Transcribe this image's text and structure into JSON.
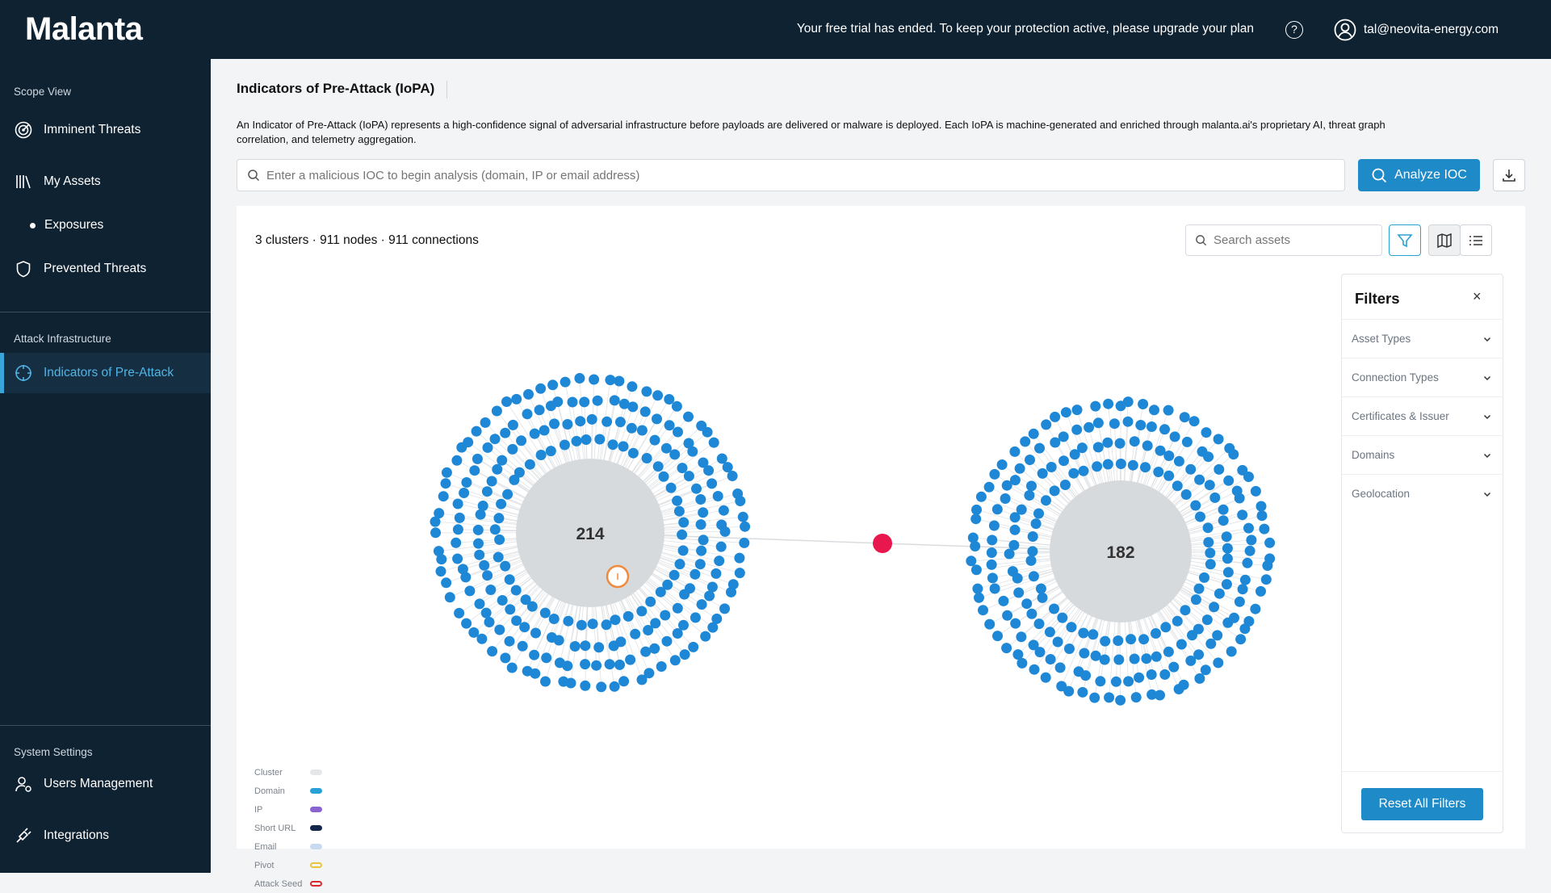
{
  "brand": {
    "name": "Malanta"
  },
  "topbar": {
    "trial_message": "Your free trial has ended. To keep your protection active, please upgrade your plan",
    "help_symbol": "?",
    "user_email": "tal@neovita-energy.com"
  },
  "sidebar": {
    "sections": [
      {
        "label": "Scope View"
      },
      {
        "label": "Attack Infrastructure"
      },
      {
        "label": "System Settings"
      }
    ],
    "items": [
      {
        "label": "Imminent Threats",
        "icon": "radar-icon"
      },
      {
        "label": "My Assets",
        "icon": "library-icon"
      },
      {
        "label": "Exposures",
        "icon": "bullet-dot"
      },
      {
        "label": "Prevented Threats",
        "icon": "shield-icon"
      },
      {
        "label": "Indicators of Pre-Attack",
        "icon": "crosshair-icon",
        "active": true
      },
      {
        "label": "Users Management",
        "icon": "users-gear-icon"
      },
      {
        "label": "Integrations",
        "icon": "plug-icon"
      }
    ]
  },
  "page": {
    "title": "Indicators of Pre-Attack (IoPA)",
    "description": "An Indicator of Pre-Attack (IoPA) represents a high-confidence signal of adversarial infrastructure before payloads are delivered or malware is deployed. Each IoPA is machine-generated and enriched through malanta.ai's proprietary AI, threat graph correlation, and telemetry aggregation.",
    "ioc_search_placeholder": "Enter a malicious IOC to begin analysis (domain, IP or email address)",
    "analyze_label": "Analyze IOC"
  },
  "graph": {
    "stats": "3 clusters · 911 nodes · 911 connections",
    "asset_search_placeholder": "Search assets",
    "clusters": [
      {
        "count_label": "214"
      },
      {
        "count_label": "182"
      }
    ],
    "colors": {
      "node": "#1e88d6",
      "cluster": "#d7dadd",
      "edge": "#d9dcdf",
      "seed": "#e8184f",
      "pivot": "#f08a3c"
    }
  },
  "filters": {
    "title": "Filters",
    "close_symbol": "×",
    "groups": [
      {
        "label": "Asset Types"
      },
      {
        "label": "Connection Types"
      },
      {
        "label": "Certificates & Issuer"
      },
      {
        "label": "Domains"
      },
      {
        "label": "Geolocation"
      }
    ],
    "reset_label": "Reset All Filters"
  },
  "legend": [
    {
      "label": "Cluster",
      "color": "#e4e6e8",
      "style": "fill"
    },
    {
      "label": "Domain",
      "color": "#2aa1d6",
      "style": "fill"
    },
    {
      "label": "IP",
      "color": "#8a63d2",
      "style": "fill"
    },
    {
      "label": "Short URL",
      "color": "#14264a",
      "style": "fill"
    },
    {
      "label": "Email",
      "color": "#c9d9ef",
      "style": "fill"
    },
    {
      "label": "Pivot",
      "color": "#e8c53a",
      "style": "outline"
    },
    {
      "label": "Attack Seed",
      "color": "#d9282f",
      "style": "outline"
    }
  ]
}
